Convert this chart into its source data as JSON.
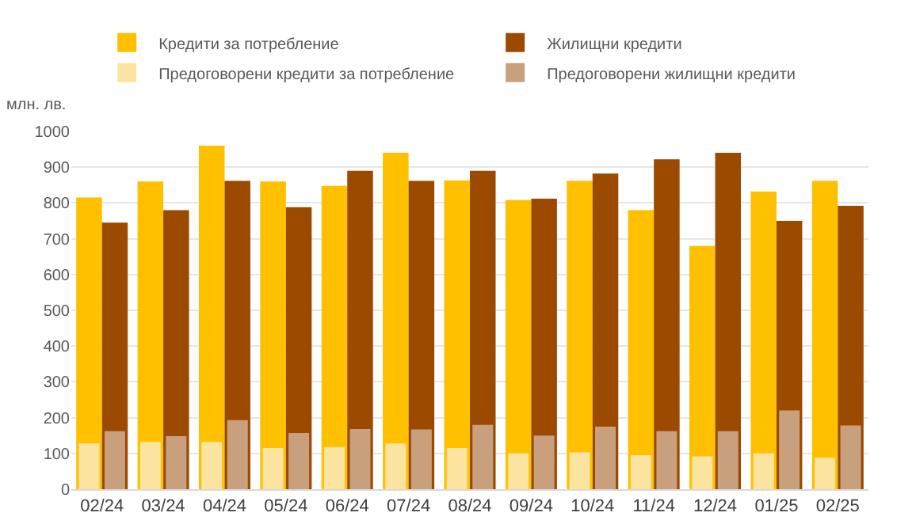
{
  "chart_data": {
    "type": "bar",
    "ylabel": "млн. лв.",
    "categories": [
      "02/24",
      "03/24",
      "04/24",
      "05/24",
      "06/24",
      "07/24",
      "08/24",
      "09/24",
      "10/24",
      "11/24",
      "12/24",
      "01/25",
      "02/25"
    ],
    "series": [
      {
        "name": "Кредити за потребление",
        "color": "#ffc000",
        "values": [
          815,
          860,
          960,
          860,
          848,
          940,
          863,
          808,
          862,
          780,
          680,
          832,
          862
        ]
      },
      {
        "name": "Жилищни кредити",
        "color": "#9c4a00",
        "values": [
          745,
          780,
          862,
          788,
          890,
          862,
          890,
          812,
          882,
          922,
          940,
          750,
          792
        ]
      },
      {
        "name": "Предоговорени кредити за потребление",
        "color": "#fbe3a0",
        "values": [
          128,
          132,
          132,
          115,
          118,
          128,
          115,
          100,
          103,
          95,
          92,
          100,
          88
        ]
      },
      {
        "name": "Предоговорени жилищни кредити",
        "color": "#c9a07e",
        "values": [
          162,
          148,
          193,
          157,
          168,
          167,
          180,
          150,
          175,
          162,
          162,
          220,
          178
        ]
      }
    ],
    "ylim": [
      0,
      1000
    ],
    "yticks": [
      0,
      100,
      200,
      300,
      400,
      500,
      600,
      700,
      800,
      900,
      1000
    ],
    "grid": "y",
    "legend": "top"
  }
}
